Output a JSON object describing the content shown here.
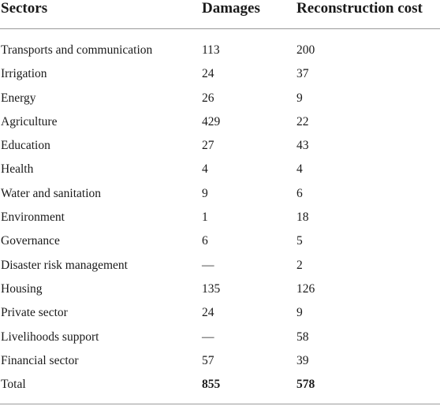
{
  "table": {
    "headers": {
      "sector": "Sectors",
      "damages": "Damages",
      "reconstruction": "Reconstruction cost"
    },
    "rows": [
      {
        "sector": "Transports and communication",
        "damages": "113",
        "reconstruction": "200"
      },
      {
        "sector": "Irrigation",
        "damages": "24",
        "reconstruction": "37"
      },
      {
        "sector": "Energy",
        "damages": "26",
        "reconstruction": "9"
      },
      {
        "sector": "Agriculture",
        "damages": "429",
        "reconstruction": "22"
      },
      {
        "sector": "Education",
        "damages": "27",
        "reconstruction": "43"
      },
      {
        "sector": "Health",
        "damages": "4",
        "reconstruction": "4"
      },
      {
        "sector": "Water and sanitation",
        "damages": "9",
        "reconstruction": "6"
      },
      {
        "sector": "Environment",
        "damages": "1",
        "reconstruction": "18"
      },
      {
        "sector": "Governance",
        "damages": "6",
        "reconstruction": "5"
      },
      {
        "sector": "Disaster risk management",
        "damages": "—",
        "reconstruction": "2"
      },
      {
        "sector": "Housing",
        "damages": "135",
        "reconstruction": "126"
      },
      {
        "sector": "Private sector",
        "damages": "24",
        "reconstruction": "9"
      },
      {
        "sector": "Livelihoods support",
        "damages": "—",
        "reconstruction": "58"
      },
      {
        "sector": "Financial sector",
        "damages": "57",
        "reconstruction": "39"
      }
    ],
    "total": {
      "sector": "Total",
      "damages": "855",
      "reconstruction": "578"
    }
  }
}
